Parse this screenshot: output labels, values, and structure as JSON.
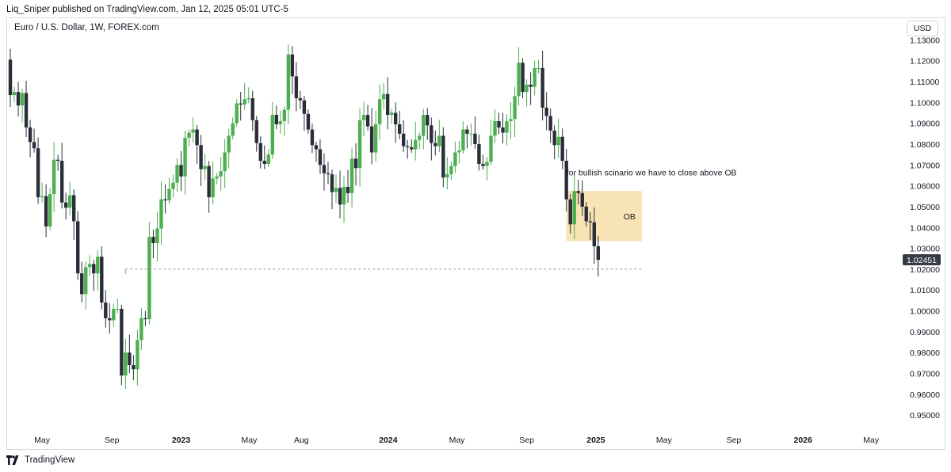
{
  "header": {
    "publisher": "Liq_Sniper published on TradingView.com, Jan 12, 2025 05:01 UTC-5"
  },
  "symbol": {
    "label": "Euro / U.S. Dollar, 1W, FOREX.com"
  },
  "currency_button": {
    "label": "USD"
  },
  "footer": {
    "brand": "TradingView"
  },
  "colors": {
    "up": "#4caf50",
    "down": "#2a2e39",
    "ob_zone": "#f8e3b4",
    "price_tag": "#363a45",
    "dashed": "#9598a1"
  },
  "chart_data": {
    "type": "candlestick",
    "title": "",
    "symbol": "Euro / U.S. Dollar",
    "interval": "1W",
    "y_ticks": [
      "1.13000",
      "1.12000",
      "1.11000",
      "1.10000",
      "1.09000",
      "1.08000",
      "1.07000",
      "1.06000",
      "1.05000",
      "1.04000",
      "1.03000",
      "1.02000",
      "1.01000",
      "1.00000",
      "0.99000",
      "0.98000",
      "0.97000",
      "0.96000",
      "0.95000"
    ],
    "y_tick_values": [
      1.13,
      1.12,
      1.11,
      1.1,
      1.09,
      1.08,
      1.07,
      1.06,
      1.05,
      1.04,
      1.03,
      1.02,
      1.01,
      1.0,
      0.99,
      0.98,
      0.97,
      0.96,
      0.95
    ],
    "x_ticks": [
      {
        "label": "May",
        "date": "2022-05-01",
        "bold": false
      },
      {
        "label": "Sep",
        "date": "2022-09-01",
        "bold": false
      },
      {
        "label": "2023",
        "date": "2023-01-01",
        "bold": true
      },
      {
        "label": "May",
        "date": "2023-05-01",
        "bold": false
      },
      {
        "label": "Aug",
        "date": "2023-08-01",
        "bold": false
      },
      {
        "label": "2024",
        "date": "2024-01-01",
        "bold": true
      },
      {
        "label": "May",
        "date": "2024-05-01",
        "bold": false
      },
      {
        "label": "Sep",
        "date": "2024-09-01",
        "bold": false
      },
      {
        "label": "2025",
        "date": "2025-01-01",
        "bold": true
      },
      {
        "label": "May",
        "date": "2025-05-01",
        "bold": false
      },
      {
        "label": "Sep",
        "date": "2025-09-01",
        "bold": false
      },
      {
        "label": "2026",
        "date": "2026-01-01",
        "bold": true
      },
      {
        "label": "May",
        "date": "2026-05-01",
        "bold": false
      }
    ],
    "x_range": [
      "2022-02-27",
      "2026-06-20"
    ],
    "y_range": [
      0.944,
      1.14
    ],
    "last_price": {
      "label": "1.02451",
      "value": 1.02451
    },
    "support_line": {
      "value": 1.02,
      "from": "2022-09-25",
      "to": "2025-03-23"
    },
    "ob_zone": {
      "label": "OB",
      "top": 1.0575,
      "bottom": 1.0335,
      "from": "2024-11-10",
      "to": "2025-03-23"
    },
    "annotation": {
      "text": "for bullish scinario we have to close above OB",
      "date": "2024-12-01",
      "price": 1.0665
    },
    "candle_closes": [
      {
        "date": "2022-03-06",
        "close": 1.1035
      },
      {
        "date": "2022-03-13",
        "close": 1.105
      },
      {
        "date": "2022-03-20",
        "close": 1.0985
      },
      {
        "date": "2022-03-27",
        "close": 1.1045
      },
      {
        "date": "2022-04-03",
        "close": 1.088
      },
      {
        "date": "2022-04-10",
        "close": 1.081
      },
      {
        "date": "2022-04-17",
        "close": 1.078
      },
      {
        "date": "2022-04-24",
        "close": 1.0545
      },
      {
        "date": "2022-05-01",
        "close": 1.055
      },
      {
        "date": "2022-05-08",
        "close": 1.0405
      },
      {
        "date": "2022-05-15",
        "close": 1.056
      },
      {
        "date": "2022-05-22",
        "close": 1.0725
      },
      {
        "date": "2022-05-29",
        "close": 1.072
      },
      {
        "date": "2022-06-05",
        "close": 1.052
      },
      {
        "date": "2022-06-12",
        "close": 1.0495
      },
      {
        "date": "2022-06-19",
        "close": 1.0555
      },
      {
        "date": "2022-06-26",
        "close": 1.043
      },
      {
        "date": "2022-07-03",
        "close": 1.018
      },
      {
        "date": "2022-07-10",
        "close": 1.008
      },
      {
        "date": "2022-07-17",
        "close": 1.021
      },
      {
        "date": "2022-07-24",
        "close": 1.0225
      },
      {
        "date": "2022-07-31",
        "close": 1.018
      },
      {
        "date": "2022-08-07",
        "close": 1.026
      },
      {
        "date": "2022-08-14",
        "close": 1.004
      },
      {
        "date": "2022-08-21",
        "close": 0.9965
      },
      {
        "date": "2022-08-28",
        "close": 0.9955
      },
      {
        "date": "2022-09-04",
        "close": 1.001
      },
      {
        "date": "2022-09-11",
        "close": 1.001
      },
      {
        "date": "2022-09-18",
        "close": 0.969
      },
      {
        "date": "2022-09-25",
        "close": 0.98
      },
      {
        "date": "2022-10-02",
        "close": 0.974
      },
      {
        "date": "2022-10-09",
        "close": 0.972
      },
      {
        "date": "2022-10-16",
        "close": 0.986
      },
      {
        "date": "2022-10-23",
        "close": 0.9965
      },
      {
        "date": "2022-10-30",
        "close": 0.996
      },
      {
        "date": "2022-11-06",
        "close": 1.0355
      },
      {
        "date": "2022-11-13",
        "close": 1.0325
      },
      {
        "date": "2022-11-20",
        "close": 1.0395
      },
      {
        "date": "2022-11-27",
        "close": 1.0535
      },
      {
        "date": "2022-12-04",
        "close": 1.053
      },
      {
        "date": "2022-12-11",
        "close": 1.0585
      },
      {
        "date": "2022-12-18",
        "close": 1.0615
      },
      {
        "date": "2022-12-25",
        "close": 1.07
      },
      {
        "date": "2023-01-01",
        "close": 1.0645
      },
      {
        "date": "2023-01-08",
        "close": 1.083
      },
      {
        "date": "2023-01-15",
        "close": 1.0855
      },
      {
        "date": "2023-01-22",
        "close": 1.087
      },
      {
        "date": "2023-01-29",
        "close": 1.0795
      },
      {
        "date": "2023-02-05",
        "close": 1.068
      },
      {
        "date": "2023-02-12",
        "close": 1.0695
      },
      {
        "date": "2023-02-19",
        "close": 1.0545
      },
      {
        "date": "2023-02-26",
        "close": 1.0635
      },
      {
        "date": "2023-03-05",
        "close": 1.0645
      },
      {
        "date": "2023-03-12",
        "close": 1.067
      },
      {
        "date": "2023-03-19",
        "close": 1.076
      },
      {
        "date": "2023-03-26",
        "close": 1.084
      },
      {
        "date": "2023-04-02",
        "close": 1.09
      },
      {
        "date": "2023-04-09",
        "close": 1.0995
      },
      {
        "date": "2023-04-16",
        "close": 1.099
      },
      {
        "date": "2023-04-23",
        "close": 1.1015
      },
      {
        "date": "2023-04-30",
        "close": 1.102
      },
      {
        "date": "2023-05-07",
        "close": 1.0915
      },
      {
        "date": "2023-05-14",
        "close": 1.0805
      },
      {
        "date": "2023-05-21",
        "close": 1.072
      },
      {
        "date": "2023-05-28",
        "close": 1.0705
      },
      {
        "date": "2023-06-04",
        "close": 1.075
      },
      {
        "date": "2023-06-11",
        "close": 1.094
      },
      {
        "date": "2023-06-18",
        "close": 1.0895
      },
      {
        "date": "2023-06-25",
        "close": 1.091
      },
      {
        "date": "2023-07-02",
        "close": 1.0965
      },
      {
        "date": "2023-07-09",
        "close": 1.123
      },
      {
        "date": "2023-07-16",
        "close": 1.1125
      },
      {
        "date": "2023-07-23",
        "close": 1.102
      },
      {
        "date": "2023-07-30",
        "close": 1.101
      },
      {
        "date": "2023-08-06",
        "close": 1.0945
      },
      {
        "date": "2023-08-13",
        "close": 1.087
      },
      {
        "date": "2023-08-20",
        "close": 1.0795
      },
      {
        "date": "2023-08-27",
        "close": 1.0775
      },
      {
        "date": "2023-09-03",
        "close": 1.07
      },
      {
        "date": "2023-09-10",
        "close": 1.066
      },
      {
        "date": "2023-09-17",
        "close": 1.0655
      },
      {
        "date": "2023-09-24",
        "close": 1.057
      },
      {
        "date": "2023-10-01",
        "close": 1.059
      },
      {
        "date": "2023-10-08",
        "close": 1.051
      },
      {
        "date": "2023-10-15",
        "close": 1.0595
      },
      {
        "date": "2023-10-22",
        "close": 1.0565
      },
      {
        "date": "2023-10-29",
        "close": 1.073
      },
      {
        "date": "2023-11-05",
        "close": 1.0685
      },
      {
        "date": "2023-11-12",
        "close": 1.0915
      },
      {
        "date": "2023-11-19",
        "close": 1.094
      },
      {
        "date": "2023-11-26",
        "close": 1.0885
      },
      {
        "date": "2023-12-03",
        "close": 1.076
      },
      {
        "date": "2023-12-10",
        "close": 1.0895
      },
      {
        "date": "2023-12-17",
        "close": 1.1015
      },
      {
        "date": "2023-12-24",
        "close": 1.104
      },
      {
        "date": "2023-12-31",
        "close": 1.094
      },
      {
        "date": "2024-01-07",
        "close": 1.095
      },
      {
        "date": "2024-01-14",
        "close": 1.0895
      },
      {
        "date": "2024-01-21",
        "close": 1.085
      },
      {
        "date": "2024-01-28",
        "close": 1.079
      },
      {
        "date": "2024-02-04",
        "close": 1.0785
      },
      {
        "date": "2024-02-11",
        "close": 1.0775
      },
      {
        "date": "2024-02-18",
        "close": 1.082
      },
      {
        "date": "2024-02-25",
        "close": 1.084
      },
      {
        "date": "2024-03-03",
        "close": 1.094
      },
      {
        "date": "2024-03-10",
        "close": 1.089
      },
      {
        "date": "2024-03-17",
        "close": 1.0805
      },
      {
        "date": "2024-03-24",
        "close": 1.079
      },
      {
        "date": "2024-03-31",
        "close": 1.084
      },
      {
        "date": "2024-04-07",
        "close": 1.064
      },
      {
        "date": "2024-04-14",
        "close": 1.0655
      },
      {
        "date": "2024-04-21",
        "close": 1.0695
      },
      {
        "date": "2024-04-28",
        "close": 1.076
      },
      {
        "date": "2024-05-05",
        "close": 1.077
      },
      {
        "date": "2024-05-12",
        "close": 1.087
      },
      {
        "date": "2024-05-19",
        "close": 1.085
      },
      {
        "date": "2024-05-26",
        "close": 1.085
      },
      {
        "date": "2024-06-02",
        "close": 1.08
      },
      {
        "date": "2024-06-09",
        "close": 1.0705
      },
      {
        "date": "2024-06-16",
        "close": 1.0695
      },
      {
        "date": "2024-06-23",
        "close": 1.0715
      },
      {
        "date": "2024-06-30",
        "close": 1.084
      },
      {
        "date": "2024-07-07",
        "close": 1.091
      },
      {
        "date": "2024-07-14",
        "close": 1.088
      },
      {
        "date": "2024-07-21",
        "close": 1.0855
      },
      {
        "date": "2024-07-28",
        "close": 1.091
      },
      {
        "date": "2024-08-04",
        "close": 1.092
      },
      {
        "date": "2024-08-11",
        "close": 1.103
      },
      {
        "date": "2024-08-18",
        "close": 1.119
      },
      {
        "date": "2024-08-25",
        "close": 1.105
      },
      {
        "date": "2024-09-01",
        "close": 1.1085
      },
      {
        "date": "2024-09-08",
        "close": 1.1075
      },
      {
        "date": "2024-09-15",
        "close": 1.1165
      },
      {
        "date": "2024-09-22",
        "close": 1.1165
      },
      {
        "date": "2024-09-29",
        "close": 1.0975
      },
      {
        "date": "2024-10-06",
        "close": 1.0935
      },
      {
        "date": "2024-10-13",
        "close": 1.0865
      },
      {
        "date": "2024-10-20",
        "close": 1.0795
      },
      {
        "date": "2024-10-27",
        "close": 1.0835
      },
      {
        "date": "2024-11-03",
        "close": 1.072
      },
      {
        "date": "2024-11-10",
        "close": 1.0535
      },
      {
        "date": "2024-11-17",
        "close": 1.0415
      },
      {
        "date": "2024-11-24",
        "close": 1.0575
      },
      {
        "date": "2024-12-01",
        "close": 1.0565
      },
      {
        "date": "2024-12-08",
        "close": 1.05
      },
      {
        "date": "2024-12-15",
        "close": 1.043
      },
      {
        "date": "2024-12-22",
        "close": 1.0425
      },
      {
        "date": "2024-12-29",
        "close": 1.031
      },
      {
        "date": "2025-01-05",
        "close": 1.0245
      }
    ]
  }
}
